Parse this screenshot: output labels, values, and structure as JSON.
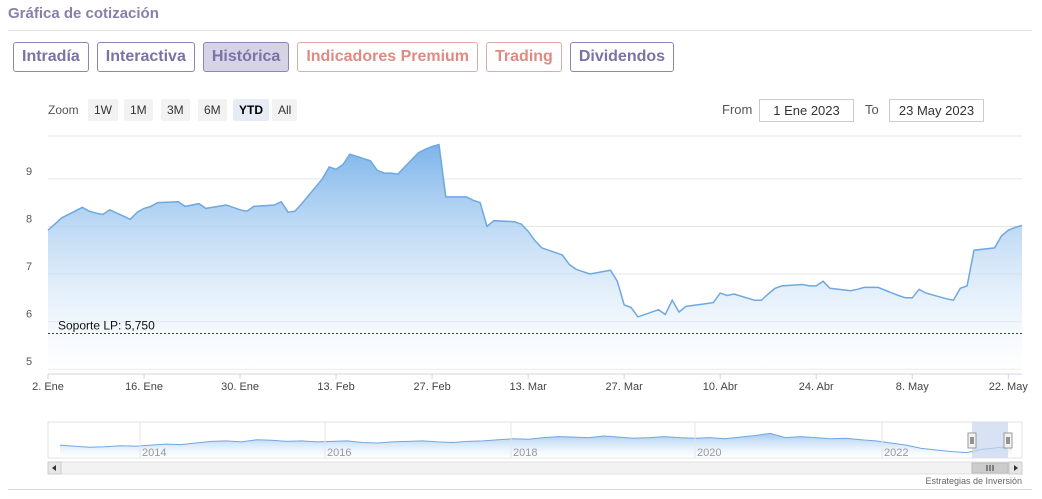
{
  "section_title": "Gráfica de cotización",
  "tabs": [
    {
      "label": "Intradía",
      "active": false,
      "premium": false
    },
    {
      "label": "Interactiva",
      "active": false,
      "premium": false
    },
    {
      "label": "Histórica",
      "active": true,
      "premium": false
    },
    {
      "label": "Indicadores Premium",
      "active": false,
      "premium": true
    },
    {
      "label": "Trading",
      "active": false,
      "premium": true
    },
    {
      "label": "Dividendos",
      "active": false,
      "premium": false
    }
  ],
  "zoom": {
    "label": "Zoom",
    "buttons": [
      "1W",
      "1M",
      "3M",
      "6M",
      "YTD",
      "All"
    ],
    "selected": "YTD"
  },
  "range": {
    "from_label": "From",
    "from_value": "1 Ene 2023",
    "to_label": "To",
    "to_value": "23 May 2023"
  },
  "credit": "Estrategias de Inversión",
  "colors": {
    "line": "#6fa8e0",
    "area_top": "#7cb4ea",
    "area_bottom": "#ffffff",
    "support_line": "#8b1a2b",
    "tab_border": "#8d86b5",
    "tab_premium": "#e08a82",
    "navigator_mask": "#c9d6ef"
  },
  "chart_data": {
    "type": "area",
    "title": "",
    "xlabel": "",
    "ylabel": "",
    "ylim": [
      4.9,
      9.9
    ],
    "y_ticks": [
      5,
      6,
      7,
      8,
      9
    ],
    "grid": true,
    "x_ticks": [
      {
        "day": 1,
        "label": "2. Ene"
      },
      {
        "day": 15,
        "label": "16. Ene"
      },
      {
        "day": 29,
        "label": "30. Ene"
      },
      {
        "day": 43,
        "label": "13. Feb"
      },
      {
        "day": 57,
        "label": "27. Feb"
      },
      {
        "day": 71,
        "label": "13. Mar"
      },
      {
        "day": 85,
        "label": "27. Mar"
      },
      {
        "day": 99,
        "label": "10. Abr"
      },
      {
        "day": 113,
        "label": "24. Abr"
      },
      {
        "day": 127,
        "label": "8. May"
      },
      {
        "day": 141,
        "label": "22. May"
      }
    ],
    "series": [
      {
        "name": "",
        "x": [
          1,
          2,
          3,
          6,
          7,
          8,
          9,
          10,
          13,
          14,
          15,
          16,
          17,
          20,
          21,
          22,
          23,
          24,
          27,
          28,
          29,
          30,
          31,
          34,
          35,
          36,
          37,
          38,
          41,
          42,
          43,
          44,
          45,
          48,
          49,
          50,
          51,
          52,
          55,
          56,
          57,
          58,
          59,
          62,
          63,
          64,
          65,
          66,
          69,
          70,
          71,
          72,
          73,
          76,
          77,
          78,
          79,
          80,
          83,
          84,
          85,
          86,
          87,
          90,
          91,
          92,
          93,
          94,
          97,
          98,
          99,
          100,
          101,
          104,
          105,
          106,
          107,
          108,
          111,
          112,
          113,
          114,
          115,
          118,
          119,
          120,
          121,
          122,
          125,
          126,
          127,
          128,
          129,
          132,
          133,
          134,
          135,
          136,
          139,
          140,
          141,
          142,
          143
        ],
        "values": [
          7.92,
          8.05,
          8.18,
          8.4,
          8.32,
          8.28,
          8.25,
          8.35,
          8.15,
          8.3,
          8.38,
          8.42,
          8.5,
          8.52,
          8.42,
          8.45,
          8.48,
          8.38,
          8.45,
          8.4,
          8.35,
          8.32,
          8.42,
          8.45,
          8.52,
          8.3,
          8.32,
          8.48,
          9.0,
          9.25,
          9.2,
          9.3,
          9.52,
          9.38,
          9.18,
          9.12,
          9.12,
          9.1,
          9.55,
          9.62,
          9.68,
          9.72,
          8.62,
          8.62,
          8.55,
          8.5,
          8.0,
          8.12,
          8.1,
          8.05,
          7.9,
          7.7,
          7.55,
          7.4,
          7.2,
          7.1,
          7.05,
          7.0,
          7.08,
          6.85,
          6.35,
          6.3,
          6.1,
          6.25,
          6.15,
          6.45,
          6.2,
          6.32,
          6.38,
          6.4,
          6.6,
          6.55,
          6.58,
          6.45,
          6.45,
          6.58,
          6.7,
          6.75,
          6.78,
          6.75,
          6.75,
          6.85,
          6.7,
          6.65,
          6.68,
          6.72,
          6.72,
          6.72,
          6.55,
          6.5,
          6.5,
          6.68,
          6.6,
          6.48,
          6.45,
          6.7,
          6.75,
          7.5,
          7.55,
          7.8,
          7.92,
          7.98,
          8.02
        ]
      }
    ],
    "annotations": [
      {
        "type": "horizontal_line",
        "y": 5.75,
        "label": "Soporte LP: 5,750",
        "style": "dashed"
      }
    ],
    "navigator": {
      "year_labels": [
        "2014",
        "2016",
        "2018",
        "2020",
        "2022"
      ],
      "values": [
        6.2,
        6.1,
        6.0,
        6.05,
        6.15,
        6.1,
        6.2,
        6.3,
        6.25,
        6.4,
        6.55,
        6.6,
        6.5,
        6.7,
        6.65,
        6.55,
        6.6,
        6.5,
        6.55,
        6.6,
        6.45,
        6.4,
        6.5,
        6.55,
        6.6,
        6.5,
        6.45,
        6.55,
        6.6,
        6.7,
        6.8,
        6.75,
        6.9,
        7.0,
        6.95,
        6.9,
        7.05,
        6.95,
        6.85,
        6.9,
        7.0,
        6.9,
        6.85,
        6.9,
        6.8,
        6.95,
        7.1,
        7.3,
        6.9,
        7.0,
        6.9,
        6.8,
        6.85,
        6.7,
        6.6,
        6.4,
        6.2,
        5.9,
        5.75,
        5.6,
        5.5,
        5.8,
        5.95,
        6.1
      ]
    }
  }
}
